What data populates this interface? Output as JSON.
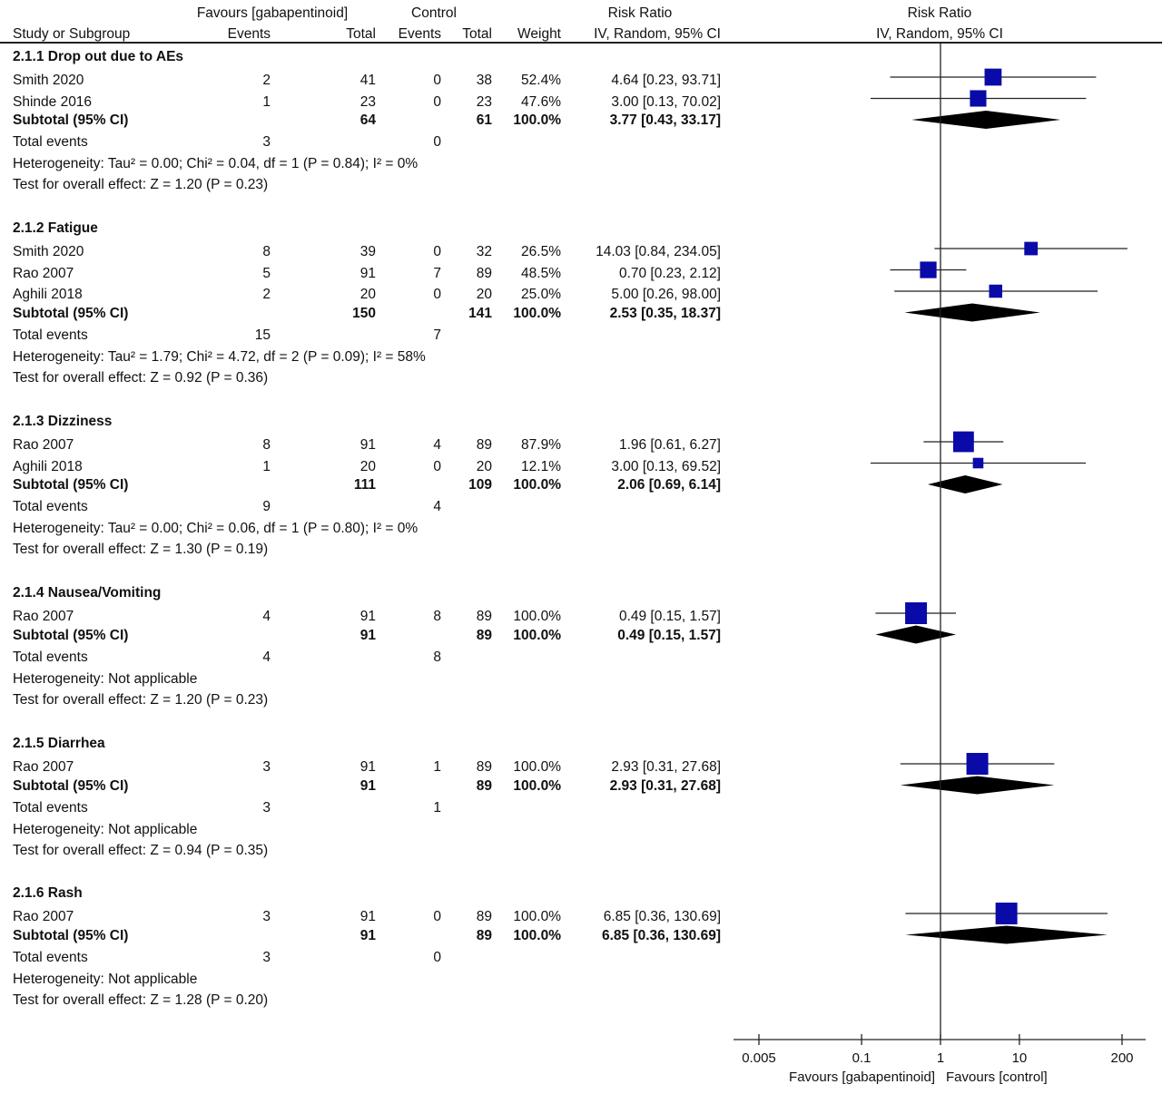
{
  "header": {
    "group1": "Favours [gabapentinoid]",
    "group2": "Control",
    "rr_title": "Risk Ratio",
    "rr_plot_title": "Risk Ratio",
    "col_study": "Study or Subgroup",
    "col_events1": "Events",
    "col_total1": "Total",
    "col_events2": "Events",
    "col_total2": "Total",
    "col_weight": "Weight",
    "col_method": "IV, Random, 95% CI",
    "col_method_plot": "IV, Random, 95% CI"
  },
  "groups": [
    {
      "title": "2.1.1 Drop out due to AEs",
      "studies": [
        {
          "name": "Smith 2020",
          "e1": "2",
          "t1": "41",
          "e2": "0",
          "t2": "38",
          "weight": "52.4%",
          "ci": "4.64 [0.23, 93.71]",
          "rr": 4.64,
          "lo": 0.23,
          "hi": 93.71,
          "w": 52.4
        },
        {
          "name": "Shinde 2016",
          "e1": "1",
          "t1": "23",
          "e2": "0",
          "t2": "23",
          "weight": "47.6%",
          "ci": "3.00 [0.13, 70.02]",
          "rr": 3.0,
          "lo": 0.13,
          "hi": 70.02,
          "w": 47.6
        }
      ],
      "subtotal": {
        "label": "Subtotal (95% CI)",
        "t1": "64",
        "t2": "61",
        "weight": "100.0%",
        "ci": "3.77 [0.43, 33.17]",
        "rr": 3.77,
        "lo": 0.43,
        "hi": 33.17
      },
      "total_events": {
        "label": "Total events",
        "e1": "3",
        "e2": "0"
      },
      "heterogeneity": "Heterogeneity: Tau² = 0.00; Chi² = 0.04, df = 1 (P = 0.84); I² = 0%",
      "overall": "Test for overall effect: Z = 1.20 (P = 0.23)"
    },
    {
      "title": "2.1.2 Fatigue",
      "studies": [
        {
          "name": "Smith 2020",
          "e1": "8",
          "t1": "39",
          "e2": "0",
          "t2": "32",
          "weight": "26.5%",
          "ci": "14.03 [0.84, 234.05]",
          "rr": 14.03,
          "lo": 0.84,
          "hi": 234.05,
          "w": 26.5
        },
        {
          "name": "Rao 2007",
          "e1": "5",
          "t1": "91",
          "e2": "7",
          "t2": "89",
          "weight": "48.5%",
          "ci": "0.70 [0.23, 2.12]",
          "rr": 0.7,
          "lo": 0.23,
          "hi": 2.12,
          "w": 48.5
        },
        {
          "name": "Aghili 2018",
          "e1": "2",
          "t1": "20",
          "e2": "0",
          "t2": "20",
          "weight": "25.0%",
          "ci": "5.00 [0.26, 98.00]",
          "rr": 5.0,
          "lo": 0.26,
          "hi": 98.0,
          "w": 25.0
        }
      ],
      "subtotal": {
        "label": "Subtotal (95% CI)",
        "t1": "150",
        "t2": "141",
        "weight": "100.0%",
        "ci": "2.53 [0.35, 18.37]",
        "rr": 2.53,
        "lo": 0.35,
        "hi": 18.37
      },
      "total_events": {
        "label": "Total events",
        "e1": "15",
        "e2": "7"
      },
      "heterogeneity": "Heterogeneity: Tau² = 1.79; Chi² = 4.72, df = 2 (P = 0.09); I² = 58%",
      "overall": "Test for overall effect: Z = 0.92 (P = 0.36)"
    },
    {
      "title": "2.1.3 Dizziness",
      "studies": [
        {
          "name": "Rao 2007",
          "e1": "8",
          "t1": "91",
          "e2": "4",
          "t2": "89",
          "weight": "87.9%",
          "ci": "1.96 [0.61, 6.27]",
          "rr": 1.96,
          "lo": 0.61,
          "hi": 6.27,
          "w": 87.9
        },
        {
          "name": "Aghili 2018",
          "e1": "1",
          "t1": "20",
          "e2": "0",
          "t2": "20",
          "weight": "12.1%",
          "ci": "3.00 [0.13, 69.52]",
          "rr": 3.0,
          "lo": 0.13,
          "hi": 69.52,
          "w": 12.1
        }
      ],
      "subtotal": {
        "label": "Subtotal (95% CI)",
        "t1": "111",
        "t2": "109",
        "weight": "100.0%",
        "ci": "2.06 [0.69, 6.14]",
        "rr": 2.06,
        "lo": 0.69,
        "hi": 6.14
      },
      "total_events": {
        "label": "Total events",
        "e1": "9",
        "e2": "4"
      },
      "heterogeneity": "Heterogeneity: Tau² = 0.00; Chi² = 0.06, df = 1 (P = 0.80); I² = 0%",
      "overall": "Test for overall effect: Z = 1.30 (P = 0.19)"
    },
    {
      "title": "2.1.4 Nausea/Vomiting",
      "studies": [
        {
          "name": "Rao 2007",
          "e1": "4",
          "t1": "91",
          "e2": "8",
          "t2": "89",
          "weight": "100.0%",
          "ci": "0.49 [0.15, 1.57]",
          "rr": 0.49,
          "lo": 0.15,
          "hi": 1.57,
          "w": 100.0
        }
      ],
      "subtotal": {
        "label": "Subtotal (95% CI)",
        "t1": "91",
        "t2": "89",
        "weight": "100.0%",
        "ci": "0.49 [0.15, 1.57]",
        "rr": 0.49,
        "lo": 0.15,
        "hi": 1.57
      },
      "total_events": {
        "label": "Total events",
        "e1": "4",
        "e2": "8"
      },
      "heterogeneity": "Heterogeneity: Not applicable",
      "overall": "Test for overall effect: Z = 1.20 (P = 0.23)"
    },
    {
      "title": "2.1.5 Diarrhea",
      "studies": [
        {
          "name": "Rao 2007",
          "e1": "3",
          "t1": "91",
          "e2": "1",
          "t2": "89",
          "weight": "100.0%",
          "ci": "2.93 [0.31, 27.68]",
          "rr": 2.93,
          "lo": 0.31,
          "hi": 27.68,
          "w": 100.0
        }
      ],
      "subtotal": {
        "label": "Subtotal (95% CI)",
        "t1": "91",
        "t2": "89",
        "weight": "100.0%",
        "ci": "2.93 [0.31, 27.68]",
        "rr": 2.93,
        "lo": 0.31,
        "hi": 27.68
      },
      "total_events": {
        "label": "Total events",
        "e1": "3",
        "e2": "1"
      },
      "heterogeneity": "Heterogeneity: Not applicable",
      "overall": "Test for overall effect: Z = 0.94 (P = 0.35)"
    },
    {
      "title": "2.1.6 Rash",
      "studies": [
        {
          "name": "Rao 2007",
          "e1": "3",
          "t1": "91",
          "e2": "0",
          "t2": "89",
          "weight": "100.0%",
          "ci": "6.85 [0.36, 130.69]",
          "rr": 6.85,
          "lo": 0.36,
          "hi": 130.69,
          "w": 100.0
        }
      ],
      "subtotal": {
        "label": "Subtotal (95% CI)",
        "t1": "91",
        "t2": "89",
        "weight": "100.0%",
        "ci": "6.85 [0.36, 130.69]",
        "rr": 6.85,
        "lo": 0.36,
        "hi": 130.69
      },
      "total_events": {
        "label": "Total events",
        "e1": "3",
        "e2": "0"
      },
      "heterogeneity": "Heterogeneity: Not applicable",
      "overall": "Test for overall effect: Z = 1.28 (P = 0.20)"
    }
  ],
  "axis": {
    "ticks": [
      {
        "value": 0.005,
        "label": "0.005"
      },
      {
        "value": 0.1,
        "label": "0.1"
      },
      {
        "value": 1,
        "label": "1"
      },
      {
        "value": 10,
        "label": "10"
      },
      {
        "value": 200,
        "label": "200"
      }
    ],
    "range": [
      0.005,
      200
    ],
    "scale": "log",
    "left_label": "Favours [gabapentinoid]",
    "right_label": "Favours [control]"
  },
  "colors": {
    "square": "#0a0aa8",
    "diamond": "#000000",
    "line": "#222222"
  },
  "chart_data": {
    "type": "forest",
    "x_scale": "log",
    "xlim": [
      0.005,
      200
    ],
    "measure": "Risk Ratio (IV, Random, 95% CI)",
    "series": [
      {
        "name": "2.1.1 Drop out due to AEs",
        "points": [
          {
            "study": "Smith 2020",
            "rr": 4.64,
            "ci": [
              0.23,
              93.71
            ],
            "weight": 52.4
          },
          {
            "study": "Shinde 2016",
            "rr": 3.0,
            "ci": [
              0.13,
              70.02
            ],
            "weight": 47.6
          }
        ],
        "subtotal": {
          "rr": 3.77,
          "ci": [
            0.43,
            33.17
          ]
        }
      },
      {
        "name": "2.1.2 Fatigue",
        "points": [
          {
            "study": "Smith 2020",
            "rr": 14.03,
            "ci": [
              0.84,
              234.05
            ],
            "weight": 26.5
          },
          {
            "study": "Rao 2007",
            "rr": 0.7,
            "ci": [
              0.23,
              2.12
            ],
            "weight": 48.5
          },
          {
            "study": "Aghili 2018",
            "rr": 5.0,
            "ci": [
              0.26,
              98.0
            ],
            "weight": 25.0
          }
        ],
        "subtotal": {
          "rr": 2.53,
          "ci": [
            0.35,
            18.37
          ]
        }
      },
      {
        "name": "2.1.3 Dizziness",
        "points": [
          {
            "study": "Rao 2007",
            "rr": 1.96,
            "ci": [
              0.61,
              6.27
            ],
            "weight": 87.9
          },
          {
            "study": "Aghili 2018",
            "rr": 3.0,
            "ci": [
              0.13,
              69.52
            ],
            "weight": 12.1
          }
        ],
        "subtotal": {
          "rr": 2.06,
          "ci": [
            0.69,
            6.14
          ]
        }
      },
      {
        "name": "2.1.4 Nausea/Vomiting",
        "points": [
          {
            "study": "Rao 2007",
            "rr": 0.49,
            "ci": [
              0.15,
              1.57
            ],
            "weight": 100.0
          }
        ],
        "subtotal": {
          "rr": 0.49,
          "ci": [
            0.15,
            1.57
          ]
        }
      },
      {
        "name": "2.1.5 Diarrhea",
        "points": [
          {
            "study": "Rao 2007",
            "rr": 2.93,
            "ci": [
              0.31,
              27.68
            ],
            "weight": 100.0
          }
        ],
        "subtotal": {
          "rr": 2.93,
          "ci": [
            0.31,
            27.68
          ]
        }
      },
      {
        "name": "2.1.6 Rash",
        "points": [
          {
            "study": "Rao 2007",
            "rr": 6.85,
            "ci": [
              0.36,
              130.69
            ],
            "weight": 100.0
          }
        ],
        "subtotal": {
          "rr": 6.85,
          "ci": [
            0.36,
            130.69
          ]
        }
      }
    ]
  }
}
